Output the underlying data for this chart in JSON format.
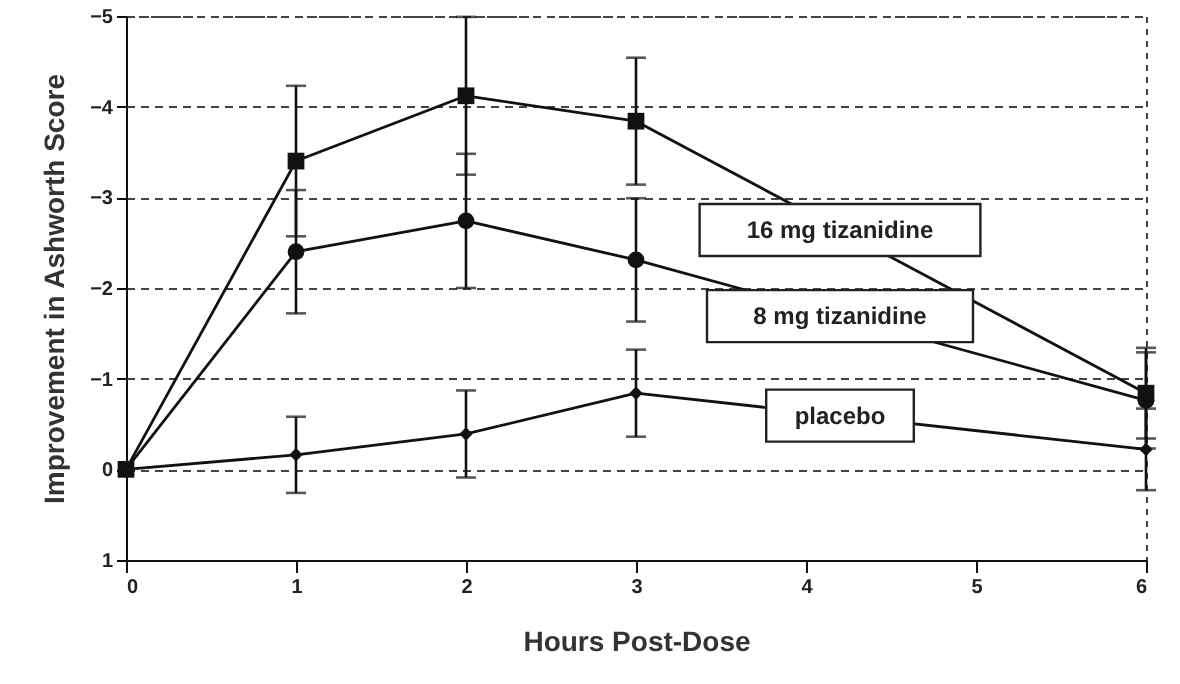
{
  "chart_data": {
    "type": "line",
    "xlabel": "Hours Post-Dose",
    "ylabel": "Improvement in Ashworth Score",
    "x": [
      0,
      1,
      2,
      3,
      6
    ],
    "xlim": [
      0,
      6
    ],
    "xticks": [
      0,
      1,
      2,
      3,
      4,
      5,
      6
    ],
    "ylim": [
      1,
      -5
    ],
    "yticks": [
      -5,
      -4,
      -3,
      -2,
      -1,
      0,
      1
    ],
    "grid": "y",
    "line_style": "solid",
    "series": [
      {
        "name": "16 mg tizanidine",
        "color": "#111111",
        "marker": "square",
        "values": [
          0,
          -3.4,
          -4.12,
          -3.84,
          -0.84
        ],
        "errors": [
          null,
          0.83,
          0.87,
          0.7,
          0.5
        ]
      },
      {
        "name": "8 mg tizanidine",
        "color": "#111111",
        "marker": "circle",
        "values": [
          0,
          -2.4,
          -2.74,
          -2.31,
          -0.76
        ],
        "errors": [
          null,
          0.68,
          0.74,
          0.68,
          0.53
        ]
      },
      {
        "name": "placebo",
        "color": "#111111",
        "marker": "diamond",
        "values": [
          0,
          -0.16,
          -0.39,
          -0.84,
          -0.22
        ],
        "errors": [
          null,
          0.42,
          0.48,
          0.48,
          0.45
        ]
      }
    ]
  }
}
